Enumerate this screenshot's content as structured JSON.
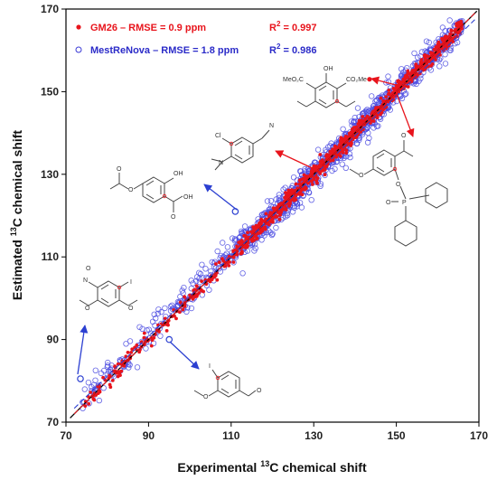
{
  "chart_data": {
    "type": "scatter",
    "xlabel_main": "Experimental ",
    "xlabel_sup": "13",
    "xlabel_tail": "C chemical shift",
    "ylabel_main": "Estimated ",
    "ylabel_sup": "13",
    "ylabel_tail": "C chemical shift",
    "xlim": [
      70,
      170
    ],
    "ylim": [
      70,
      170
    ],
    "x_ticks": [
      "70",
      "90",
      "110",
      "130",
      "150",
      "170"
    ],
    "y_ticks": [
      "70",
      "90",
      "110",
      "130",
      "150",
      "170"
    ],
    "legend_position": "top-left",
    "grid": false,
    "series": [
      {
        "name": "GM26 – RMSE = 0.9 ppm",
        "r2_prefix": "R",
        "r2_sup": "2",
        "r2_value": " = 0.997",
        "color": "#e8141c",
        "marker": "filled-dot",
        "rmse": 0.9,
        "r2": 0.997,
        "fit": {
          "slope": 1.0,
          "intercept": 0.0
        }
      },
      {
        "name": "MestReNova – RMSE = 1.8 ppm",
        "r2_prefix": "R",
        "r2_sup": "2",
        "r2_value": " = 0.986",
        "color": "#3a3ad6",
        "marker": "open-circle",
        "rmse": 1.8,
        "r2": 0.986,
        "fit": {
          "slope": 0.97,
          "intercept": 3.5
        }
      }
    ],
    "identity_line_color": "#000000",
    "highlighted_points": [
      {
        "x": 73.5,
        "y": 80.5,
        "series": "MestReNova"
      },
      {
        "x": 95.0,
        "y": 90.0,
        "series": "MestReNova"
      },
      {
        "x": 111.0,
        "y": 121.0,
        "series": "MestReNova"
      },
      {
        "x": 131.5,
        "y": 132.0,
        "series": "GM26"
      },
      {
        "x": 143.5,
        "y": 153.0,
        "series": "GM26"
      },
      {
        "x": 150.5,
        "y": 152.5,
        "series": "GM26"
      }
    ]
  },
  "molecules": {
    "nitro_anisole": {
      "labels": [
        "O",
        "N",
        "I",
        "O",
        "O"
      ]
    },
    "acetoxy_salicylic": {
      "labels": [
        "OH",
        "O",
        "O",
        "O",
        "OH"
      ]
    },
    "chloro_cyano_aniline": {
      "labels": [
        "Cl",
        "N",
        "N"
      ]
    },
    "diester_phenol": {
      "labels": [
        "OH",
        "MeO₂C",
        "CO₂Me"
      ]
    },
    "phosphinate_acetophenone": {
      "labels": [
        "O",
        "O",
        "O",
        "P"
      ]
    },
    "iodo_methoxybenzaldehyde": {
      "labels": [
        "I",
        "O",
        "O"
      ]
    }
  },
  "colors": {
    "arrow_red": "#e8141c",
    "arrow_blue": "#2b3fd1",
    "axis": "#000000"
  }
}
